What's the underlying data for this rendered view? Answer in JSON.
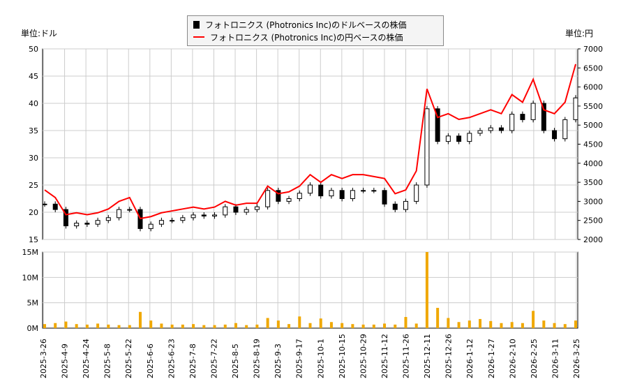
{
  "units": {
    "left": "単位:ドル",
    "right": "単位:円"
  },
  "legend": [
    {
      "label": "フォトロニクス (Photronics Inc)のドルベースの株価",
      "color": "#000000"
    },
    {
      "label": "フォトロニクス (Photronics Inc)の円ベースの株価",
      "color": "#ff0000"
    }
  ],
  "chart_data": {
    "type": "candlestick+line+bar",
    "x_tick_labels": [
      "2025-3-26",
      "2025-4-9",
      "2025-4-24",
      "2025-5-8",
      "2025-5-22",
      "2025-6-6",
      "2025-6-23",
      "2025-7-8",
      "2025-7-22",
      "2025-8-5",
      "2025-8-19",
      "2025-9-3",
      "2025-9-17",
      "2025-10-1",
      "2025-10-15",
      "2025-10-29",
      "2025-11-12",
      "2025-11-26",
      "2025-12-11",
      "2025-12-26",
      "2026-1-12",
      "2026-1-27",
      "2026-2-10",
      "2026-2-25",
      "2026-3-11",
      "2026-3-25"
    ],
    "left_axis": {
      "ylim": [
        15,
        50
      ],
      "ticks": [
        15,
        20,
        25,
        30,
        35,
        40,
        45,
        50
      ]
    },
    "right_axis": {
      "ylim": [
        2000,
        7000
      ],
      "ticks": [
        2000,
        2500,
        3000,
        3500,
        4000,
        4500,
        5000,
        5500,
        6000,
        6500,
        7000
      ]
    },
    "volume_axis": {
      "ylim": [
        0,
        15000000
      ],
      "ticks": [
        "0M",
        "5M",
        "10M",
        "15M"
      ]
    },
    "usd_close": [
      21.5,
      20.5,
      17.5,
      18,
      17.8,
      18.5,
      19,
      20.5,
      20.5,
      17,
      17.8,
      18.5,
      18.5,
      19,
      19.5,
      19.3,
      19.5,
      21,
      20,
      20.5,
      21,
      24,
      22,
      22.5,
      23.5,
      25,
      23,
      24,
      22.5,
      24,
      24,
      24,
      21.5,
      20.5,
      22,
      25,
      39,
      33,
      34,
      33,
      34.5,
      35,
      35.5,
      35,
      38,
      37,
      40,
      35,
      33.5,
      37,
      41
    ],
    "jpy_close": [
      3300,
      3100,
      2650,
      2700,
      2650,
      2700,
      2800,
      3000,
      3100,
      2550,
      2600,
      2700,
      2750,
      2800,
      2850,
      2800,
      2850,
      3000,
      2900,
      2950,
      2950,
      3400,
      3200,
      3250,
      3400,
      3700,
      3500,
      3700,
      3600,
      3700,
      3700,
      3650,
      3600,
      3200,
      3300,
      3800,
      5950,
      5200,
      5300,
      5150,
      5200,
      5300,
      5400,
      5300,
      5800,
      5600,
      6200,
      5400,
      5300,
      5600,
      6600
    ],
    "volume_millions": [
      0.8,
      1.0,
      1.3,
      0.8,
      0.7,
      0.9,
      0.7,
      0.6,
      0.6,
      3.2,
      1.5,
      0.9,
      0.7,
      0.7,
      0.8,
      0.6,
      0.6,
      0.7,
      1.0,
      0.6,
      0.7,
      2.0,
      1.5,
      0.8,
      2.3,
      1.0,
      1.9,
      1.2,
      1.0,
      0.8,
      0.7,
      0.7,
      0.9,
      0.7,
      2.2,
      0.9,
      15,
      4,
      2,
      1.2,
      1.5,
      1.8,
      1.4,
      1.0,
      1.2,
      1.0,
      3.4,
      1.5,
      1.0,
      0.8,
      1.5
    ],
    "grid": true
  }
}
